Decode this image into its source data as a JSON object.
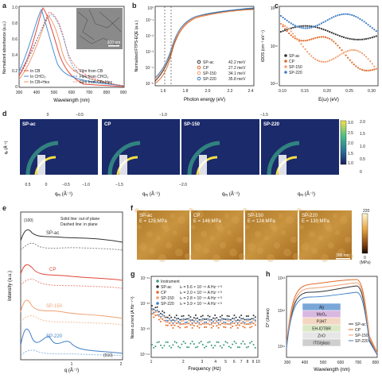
{
  "panel_a": {
    "label": "a",
    "ylabel": "Normalized absorbance (a.u.)",
    "xlabel": "Wavelength (nm)",
    "xticks": [
      "300",
      "400",
      "500",
      "600",
      "700",
      "800",
      "900"
    ],
    "yticks": [
      "0",
      "0.2",
      "0.4",
      "0.6",
      "0.8",
      "1.0"
    ],
    "legend_left": [
      "In CB",
      "In CHCl₃",
      "In CB+Hex"
    ],
    "legend_right": [
      "Film from CB",
      "Film from CHCl₃",
      "Film from CB+Hex"
    ],
    "inset_scale": "200 nm",
    "colors": {
      "cb": "#e0463a",
      "chcl3": "#4a8fd4",
      "hex": "#f09a6b"
    }
  },
  "panel_b": {
    "label": "b",
    "ylabel": "Normalized FTPS-EQE (a.u.)",
    "xlabel": "Photon energy (eV)",
    "yticks": [
      "10⁻⁵",
      "10⁻⁴",
      "10⁻³",
      "10⁻²",
      "10⁻¹",
      "10⁰"
    ],
    "xticks": [
      "1.6",
      "1.8",
      "2.0",
      "2.2",
      "2.4"
    ],
    "legend": [
      {
        "name": "SP-ac",
        "value": "42.2 meV",
        "color": "#333333"
      },
      {
        "name": "CP",
        "value": "27.2 meV",
        "color": "#e06a2a"
      },
      {
        "name": "SP-150",
        "value": "34.1 meV",
        "color": "#f0a070"
      },
      {
        "name": "SP-220",
        "value": "35.8 meV",
        "color": "#3f7fc4"
      }
    ]
  },
  "panel_c": {
    "label": "c",
    "ylabel": "tDOS (cm⁻³ eV⁻¹)",
    "xlabel": "E(ω) (eV)",
    "yticks": [
      "10¹⁴",
      "10¹⁵",
      "10¹⁶"
    ],
    "xticks": [
      "0.10",
      "0.15",
      "0.20",
      "0.25",
      "0.30"
    ],
    "legend": [
      "SP-ac",
      "CP",
      "SP-150",
      "SP-220"
    ]
  },
  "panel_d": {
    "label": "d",
    "titles": [
      "SP-ac",
      "CP",
      "SP-150",
      "SP-220"
    ],
    "ylabel": "qₓ (Å⁻¹)",
    "xlabel": "qₓᵧ (Å⁻¹)",
    "xticks_top": [
      "0",
      "−0.5",
      "−1.0",
      "−1.5"
    ],
    "xticks_bottom": [
      "0.5",
      "0",
      "−0.5",
      "−1.0",
      "−1.5",
      "−2.0"
    ],
    "yticks": [
      "0",
      "0.5",
      "1.0",
      "1.5",
      "2.0"
    ],
    "colorbar": [
      "3.0",
      "2.5",
      "2.0",
      "1.5",
      "1.0"
    ]
  },
  "panel_e": {
    "label": "e",
    "note_1": "Solid line: out of plane",
    "note_2": "Dashed line: in plane",
    "peak_100": "(100)",
    "peak_010": "(010)",
    "ylabel": "Intensity (a.u.)",
    "xlabel": "q (Å⁻¹)",
    "curves": [
      "SP-ac",
      "CP",
      "SP-150",
      "SP-220"
    ],
    "xticks": [
      "1",
      "2"
    ]
  },
  "panel_f": {
    "label": "f",
    "tiles": [
      {
        "name": "SP-ac",
        "modulus": "E = 125 MPa"
      },
      {
        "name": "CP",
        "modulus": "E = 146 MPa"
      },
      {
        "name": "SP-150",
        "modulus": "E = 124 MPa"
      },
      {
        "name": "SP-220",
        "modulus": "E = 130 MPa"
      }
    ],
    "scale": "300 nm",
    "cbar_top": "220",
    "cbar_bottom": "0",
    "cbar_unit": "(MPa)"
  },
  "panel_g": {
    "label": "g",
    "ylabel": "Noise current (A Hz⁻¹ᐟ²)",
    "xlabel": "Frequency (Hz)",
    "legend": [
      {
        "name": "Instrument",
        "value": ""
      },
      {
        "name": "SP-ac",
        "value": "iₙ = 5.6 × 10⁻¹⁴ A Hz⁻¹ᐟ²"
      },
      {
        "name": "CP",
        "value": "iₙ = 2.0 × 10⁻¹⁴ A Hz⁻¹ᐟ²"
      },
      {
        "name": "SP-150",
        "value": "iₙ = 2.8 × 10⁻¹⁴ A Hz⁻¹ᐟ²"
      },
      {
        "name": "SP-220",
        "value": "iₙ = 3.9 × 10⁻¹⁴ A Hz⁻¹ᐟ²"
      }
    ],
    "yticks": [
      "10⁻¹¹",
      "10⁻¹²",
      "10⁻¹³",
      "10⁻¹⁴"
    ],
    "xticks": [
      "1",
      "2",
      "3",
      "4",
      "5",
      "6",
      "7",
      "8",
      "9",
      "10"
    ]
  },
  "panel_h": {
    "label": "h",
    "ylabel": "D* (Jones)",
    "xlabel": "Wavelength (nm)",
    "yticks": [
      "10¹³",
      "10¹²",
      "10¹¹"
    ],
    "xticks": [
      "300",
      "400",
      "500",
      "600",
      "700",
      "800"
    ],
    "stack": [
      "Ag",
      "MoO₃",
      "P3HT",
      "EH-IDTBR",
      "ZnO",
      "ITO/glass"
    ],
    "legend": [
      "SP-ac",
      "CP",
      "SP-150",
      "SP-220"
    ]
  }
}
